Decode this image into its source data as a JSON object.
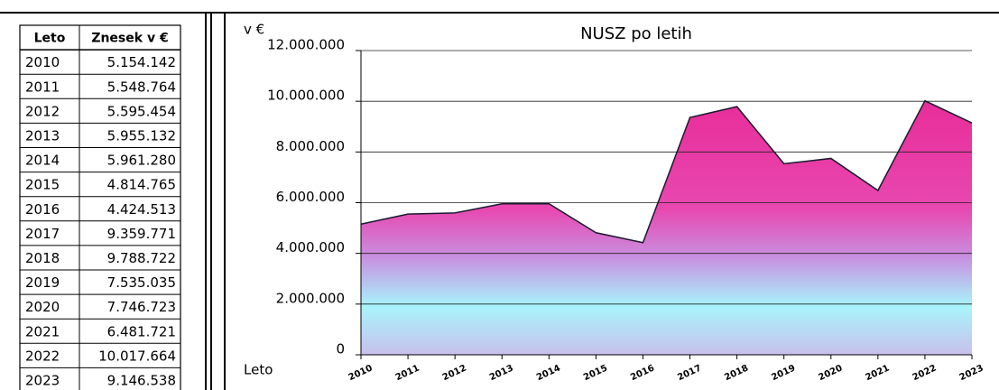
{
  "table": {
    "header": [
      "Leto",
      "Znesek v €"
    ],
    "rows": [
      [
        "2010",
        "5.154.142"
      ],
      [
        "2011",
        "5.548.764"
      ],
      [
        "2012",
        "5.595.454"
      ],
      [
        "2013",
        "5.955.132"
      ],
      [
        "2014",
        "5.961.280"
      ],
      [
        "2015",
        "4.814.765"
      ],
      [
        "2016",
        "4.424.513"
      ],
      [
        "2017",
        "9.359.771"
      ],
      [
        "2018",
        "9.788.722"
      ],
      [
        "2019",
        "7.535.035"
      ],
      [
        "2020",
        "7.746.723"
      ],
      [
        "2021",
        "6.481.721"
      ],
      [
        "2022",
        "10.017.664"
      ],
      [
        "2023",
        "9.146.538"
      ]
    ]
  },
  "chart_data": {
    "type": "area",
    "title": "NUSZ po letih",
    "y_label": "v €",
    "x_label": "Leto",
    "categories": [
      "2010",
      "2011",
      "2012",
      "2013",
      "2014",
      "2015",
      "2016",
      "2017",
      "2018",
      "2019",
      "2020",
      "2021",
      "2022",
      "2023"
    ],
    "values": [
      5154142,
      5548764,
      5595454,
      5955132,
      5961280,
      4814765,
      4424513,
      9359771,
      9788722,
      7535035,
      7746723,
      6481721,
      10017664,
      9146538
    ],
    "color": "#e8208f",
    "ylim": [
      0,
      12000000
    ],
    "yticks": [
      0,
      {
        "value": 2000000,
        "label": "2.000.000"
      },
      {
        "value": 4000000,
        "label": "4.000.000"
      },
      {
        "value": 6000000,
        "label": "6.000.000"
      },
      {
        "value": 8000000,
        "label": "8.000.000"
      },
      {
        "value": 10000000,
        "label": "10.000.000"
      },
      {
        "value": 12000000,
        "label": "12.000.000"
      }
    ],
    "grid": true
  }
}
